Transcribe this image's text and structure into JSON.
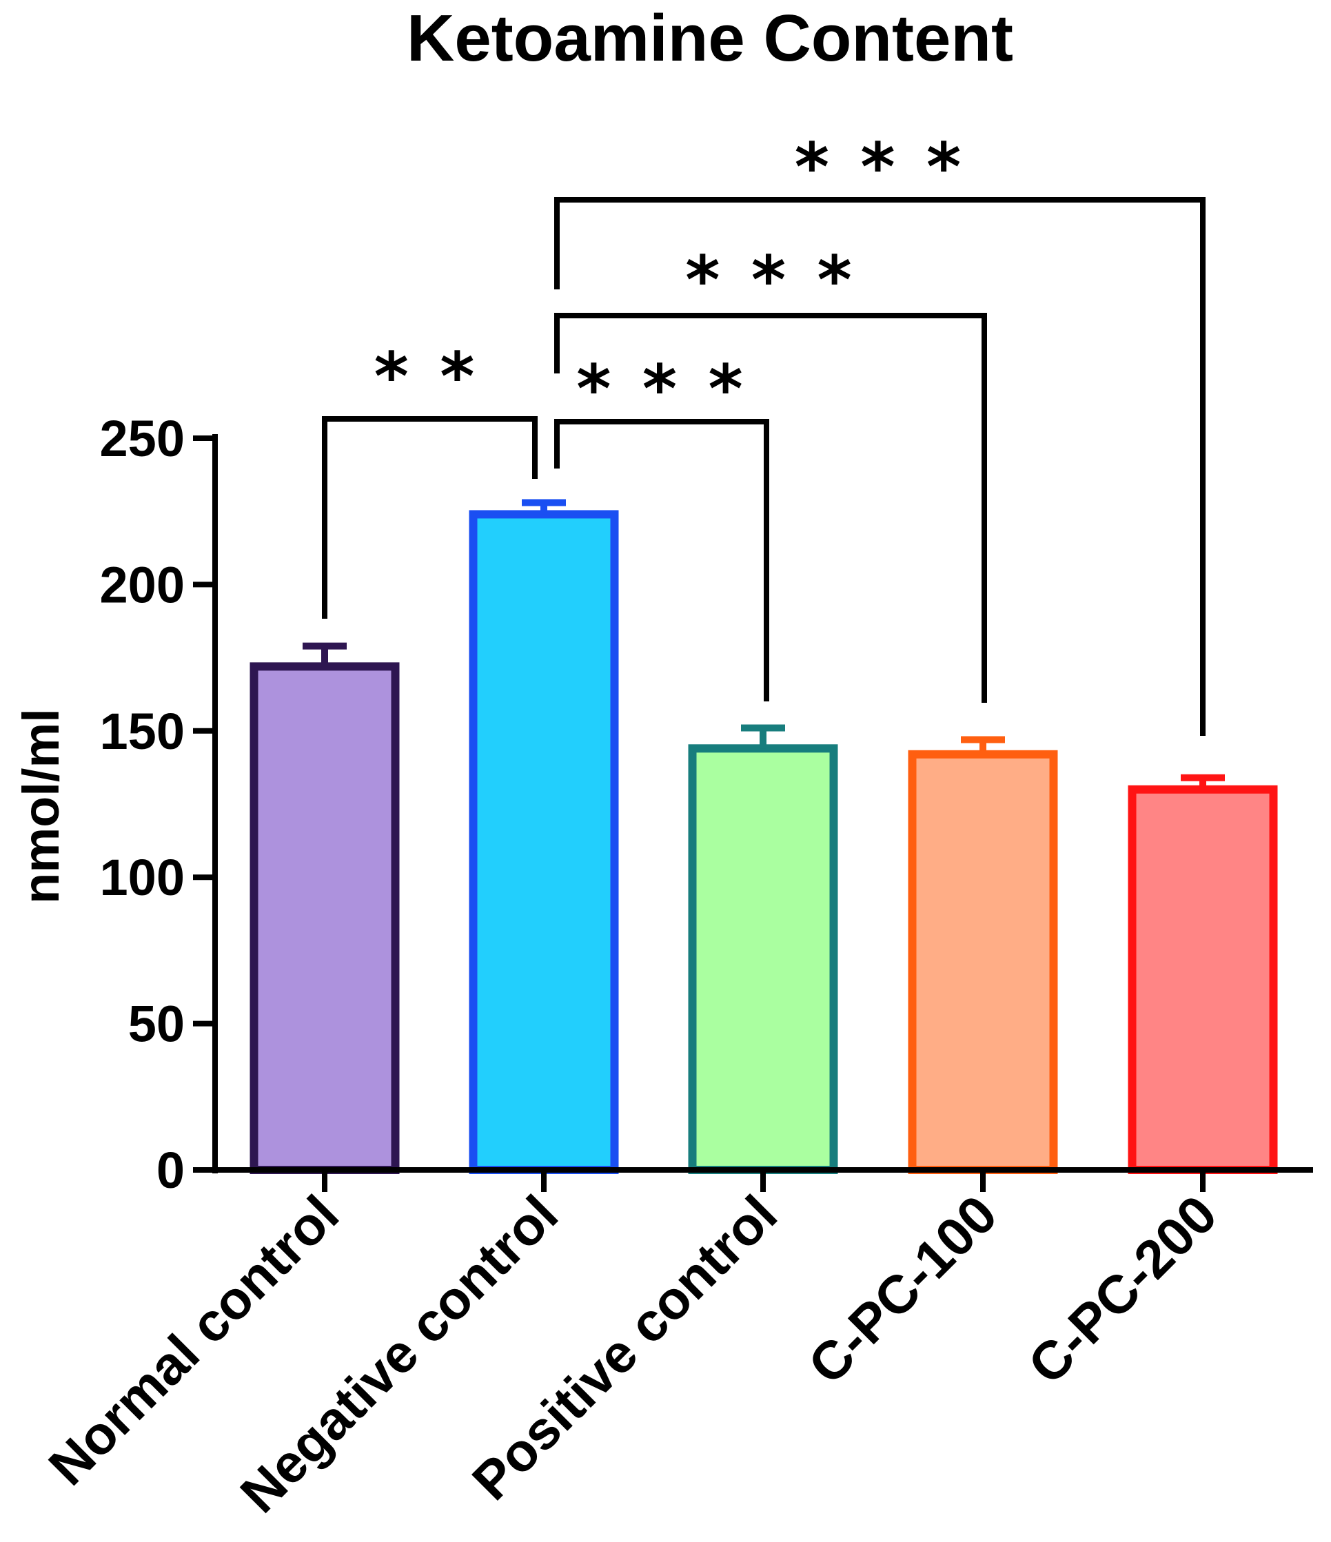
{
  "chart_data": {
    "type": "bar",
    "title": "Ketoamine Content",
    "xlabel": "",
    "ylabel": "nmol/ml",
    "ylim": [
      0,
      250
    ],
    "yticks": [
      0,
      50,
      100,
      150,
      200,
      250
    ],
    "categories": [
      "Normal control",
      "Negative control",
      "Positive control",
      "C-PC-100",
      "C-PC-200"
    ],
    "values": [
      172,
      224,
      144,
      142,
      130
    ],
    "errors": [
      7,
      4,
      7,
      5,
      4
    ],
    "fill_colors": [
      "#ad92dd",
      "#22cffd",
      "#aaffa0",
      "#ffad86",
      "#ff8585"
    ],
    "edge_colors": [
      "#2e1651",
      "#1a4ff2",
      "#177d7d",
      "#ff5f10",
      "#ff1414"
    ],
    "significance": [
      {
        "from": 0,
        "to": 1,
        "label": "* *"
      },
      {
        "from": 1,
        "to": 2,
        "label": "* * *"
      },
      {
        "from": 1,
        "to": 3,
        "label": "* * *"
      },
      {
        "from": 1,
        "to": 4,
        "label": "* * *"
      }
    ]
  }
}
